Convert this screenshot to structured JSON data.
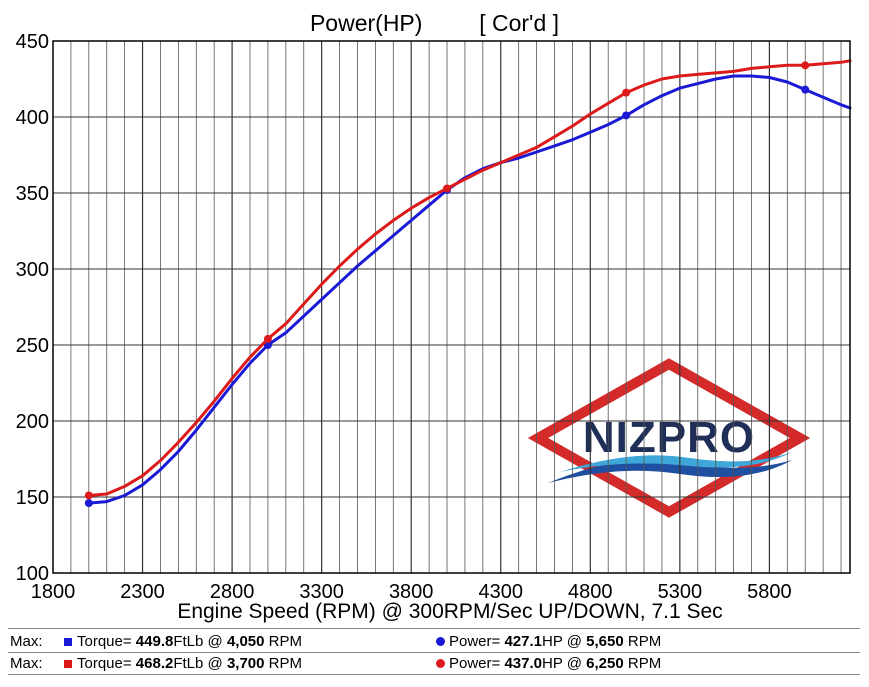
{
  "chart_data": {
    "type": "line",
    "title": "Power(HP)",
    "title_tag": "[ Cor'd ]",
    "xlabel": "Engine Speed (RPM) @ 300RPM/Sec UP/DOWN, 7.1 Sec",
    "xlim": [
      1800,
      6250
    ],
    "ylim": [
      100,
      450
    ],
    "x_ticks": [
      1800,
      2300,
      2800,
      3300,
      3800,
      4300,
      4800,
      5300,
      5800
    ],
    "y_ticks": [
      100,
      150,
      200,
      250,
      300,
      350,
      400,
      450
    ],
    "grid": true,
    "minor_x_step": 100,
    "series": [
      {
        "color": "#1a1ad6",
        "x": [
          2000,
          2100,
          2200,
          2300,
          2400,
          2500,
          2600,
          2700,
          2800,
          2900,
          3000,
          3100,
          3200,
          3300,
          3400,
          3500,
          3600,
          3700,
          3800,
          3900,
          4000,
          4100,
          4200,
          4300,
          4400,
          4500,
          4600,
          4700,
          4800,
          4900,
          5000,
          5100,
          5200,
          5300,
          5400,
          5500,
          5600,
          5700,
          5800,
          5900,
          6000,
          6100,
          6200,
          6250
        ],
        "y": [
          146,
          147,
          151,
          158,
          168,
          180,
          194,
          209,
          224,
          238,
          250,
          258,
          269,
          280,
          291,
          302,
          312,
          322,
          332,
          342,
          352,
          360,
          366,
          370,
          373,
          377,
          381,
          385,
          390,
          395,
          401,
          408,
          414,
          419,
          422,
          425,
          427,
          427,
          426,
          423,
          418,
          413,
          408,
          406
        ],
        "markers_x": [
          2000,
          3000,
          4000,
          5000,
          6000
        ]
      },
      {
        "color": "#dd1a1a",
        "x": [
          2000,
          2100,
          2200,
          2300,
          2400,
          2500,
          2600,
          2700,
          2800,
          2900,
          3000,
          3100,
          3200,
          3300,
          3400,
          3500,
          3600,
          3700,
          3800,
          3900,
          4000,
          4100,
          4200,
          4300,
          4400,
          4500,
          4600,
          4700,
          4800,
          4900,
          5000,
          5100,
          5200,
          5300,
          5400,
          5500,
          5600,
          5700,
          5800,
          5900,
          6000,
          6100,
          6200,
          6250
        ],
        "y": [
          151,
          152,
          157,
          164,
          174,
          186,
          199,
          213,
          228,
          242,
          254,
          264,
          277,
          290,
          302,
          313,
          323,
          332,
          340,
          347,
          353,
          359,
          365,
          370,
          375,
          380,
          387,
          394,
          402,
          409,
          416,
          421,
          425,
          427,
          428,
          429,
          430,
          432,
          433,
          434,
          434,
          435,
          436,
          437
        ],
        "markers_x": [
          2000,
          3000,
          4000,
          5000,
          6000
        ]
      }
    ],
    "watermark_text": "NIZPRO"
  },
  "legend": {
    "rows": [
      {
        "color": "#1a1ad6",
        "max_label": "Max:",
        "torque_label": "Torque=",
        "torque_value": "449.8",
        "torque_unit": "FtLb @",
        "torque_rpm": "4,050",
        "torque_rpm_unit": "RPM",
        "power_label": "Power=",
        "power_value": "427.1",
        "power_unit": "HP @",
        "power_rpm": "5,650",
        "power_rpm_unit": "RPM"
      },
      {
        "color": "#dd1a1a",
        "max_label": "Max:",
        "torque_label": "Torque=",
        "torque_value": "468.2",
        "torque_unit": "FtLb @",
        "torque_rpm": "3,700",
        "torque_rpm_unit": "RPM",
        "power_label": "Power=",
        "power_value": "437.0",
        "power_unit": "HP @",
        "power_rpm": "6,250",
        "power_rpm_unit": "RPM"
      }
    ]
  }
}
